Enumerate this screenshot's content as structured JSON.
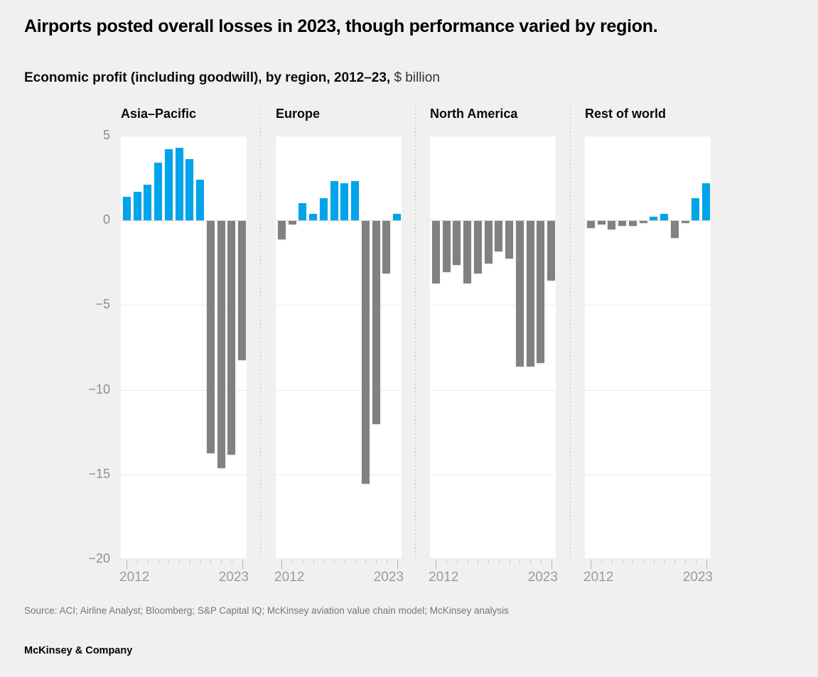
{
  "title": "Airports posted overall losses in 2023, though performance varied by region.",
  "subtitle": {
    "bold": "Economic profit (including goodwill), by region, 2012–23,",
    "unit": "$ billion"
  },
  "chart_data": {
    "type": "bar",
    "title": "Economic profit (including goodwill), by region, 2012–23",
    "ylabel": "$ billion",
    "x": [
      2012,
      2013,
      2014,
      2015,
      2016,
      2017,
      2018,
      2019,
      2020,
      2021,
      2022,
      2023
    ],
    "x_axis_labels": [
      "2012",
      "2023"
    ],
    "ylim": [
      -20,
      5
    ],
    "yticks": [
      5,
      0,
      -5,
      -10,
      -15,
      -20
    ],
    "ytick_labels": [
      "5",
      "0",
      "−5",
      "−10",
      "−15",
      "−20"
    ],
    "grid": true,
    "legend": "none",
    "colors": {
      "positive": "#00a4ea",
      "negative": "#818181"
    },
    "series": [
      {
        "name": "Asia–Pacific",
        "values": [
          1.4,
          1.7,
          2.1,
          3.4,
          4.2,
          4.3,
          3.6,
          2.4,
          -13.7,
          -14.6,
          -13.8,
          -8.2
        ]
      },
      {
        "name": "Europe",
        "values": [
          -1.1,
          -0.2,
          1.0,
          0.4,
          1.3,
          2.3,
          2.2,
          2.3,
          -15.5,
          -12.0,
          -3.1,
          0.4
        ]
      },
      {
        "name": "North America",
        "values": [
          -3.7,
          -3.0,
          -2.6,
          -3.7,
          -3.1,
          -2.5,
          -1.8,
          -2.2,
          -8.6,
          -8.6,
          -8.4,
          -3.5
        ]
      },
      {
        "name": "Rest of world",
        "values": [
          -0.4,
          -0.2,
          -0.5,
          -0.3,
          -0.3,
          -0.1,
          0.2,
          0.4,
          -1.0,
          -0.1,
          1.3,
          2.2
        ]
      }
    ]
  },
  "source": "Source: ACI; Airline Analyst; Bloomberg; S&P Capital IQ; McKinsey aviation value chain model; McKinsey analysis",
  "footer": "McKinsey & Company"
}
